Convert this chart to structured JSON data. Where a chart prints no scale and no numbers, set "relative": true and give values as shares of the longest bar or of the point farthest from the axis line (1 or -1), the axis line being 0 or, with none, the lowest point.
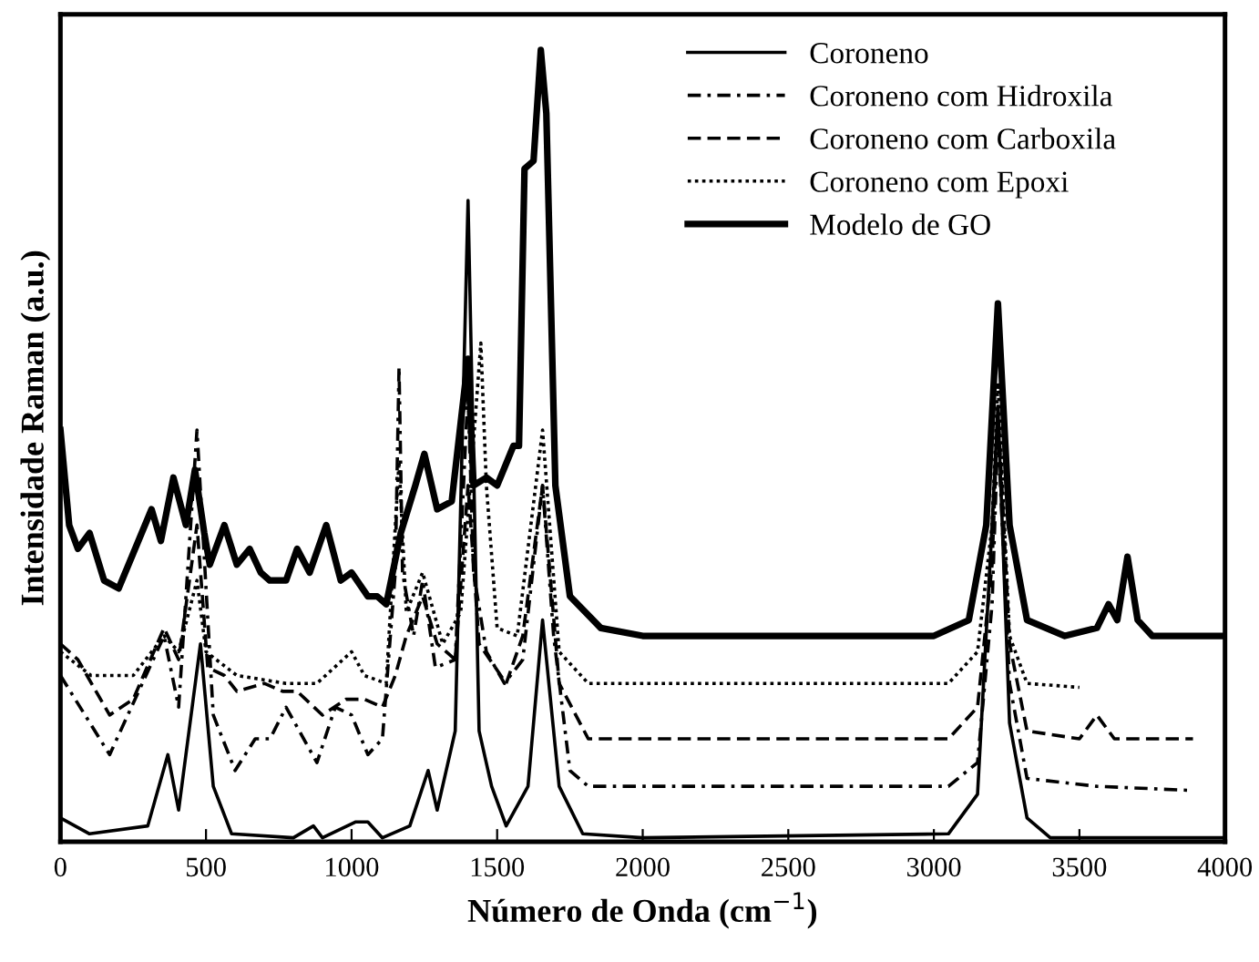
{
  "chart_data": {
    "type": "line",
    "relative": true,
    "xlabel": "Número de Onda (cm$^{−1}$)",
    "ylabel": "Intensidade Raman (a.u.)",
    "xlim": [
      0,
      4000
    ],
    "xticks": [
      0,
      500,
      1000,
      1500,
      2000,
      2500,
      3000,
      3500,
      4000
    ],
    "grid": false,
    "legend": "top right",
    "marker": "none",
    "series": [
      {
        "name": "Coroneno",
        "color": "#000000",
        "line_style": "solid",
        "x": [
          0,
          100,
          300,
          369,
          406,
          481,
          525,
          588,
          800,
          869,
          900,
          1013,
          1056,
          1106,
          1200,
          1263,
          1294,
          1356,
          1400,
          1438,
          1481,
          1531,
          1606,
          1656,
          1713,
          1794,
          2000,
          3050,
          3150,
          3200,
          3220,
          3260,
          3320,
          3400,
          4000
        ],
        "values": [
          0.03,
          0.01,
          0.02,
          0.11,
          0.04,
          0.25,
          0.07,
          0.01,
          0.005,
          0.02,
          0.005,
          0.025,
          0.025,
          0.005,
          0.02,
          0.09,
          0.04,
          0.14,
          0.81,
          0.14,
          0.07,
          0.02,
          0.07,
          0.28,
          0.07,
          0.01,
          0.005,
          0.01,
          0.06,
          0.4,
          0.55,
          0.15,
          0.03,
          0.005,
          0.005
        ]
      },
      {
        "name": "Coroneno com Hidroxila",
        "color": "#000000",
        "line_style": "dashdot",
        "x": [
          0,
          169,
          356,
          406,
          469,
          525,
          600,
          669,
          720,
          775,
          881,
          944,
          1000,
          1056,
          1106,
          1150,
          1163,
          1175,
          1213,
          1244,
          1288,
          1356,
          1400,
          1419,
          1463,
          1525,
          1588,
          1656,
          1694,
          1750,
          1813,
          3050,
          3150,
          3200,
          3220,
          3260,
          3320,
          3560,
          3875
        ],
        "values": [
          0.21,
          0.11,
          0.26,
          0.17,
          0.52,
          0.16,
          0.09,
          0.13,
          0.13,
          0.17,
          0.1,
          0.17,
          0.16,
          0.11,
          0.13,
          0.34,
          0.6,
          0.34,
          0.26,
          0.33,
          0.22,
          0.23,
          0.57,
          0.34,
          0.24,
          0.2,
          0.23,
          0.45,
          0.26,
          0.09,
          0.07,
          0.07,
          0.1,
          0.3,
          0.52,
          0.2,
          0.08,
          0.07,
          0.065
        ]
      },
      {
        "name": "Coroneno com Carboxila",
        "color": "#000000",
        "line_style": "dashed",
        "x": [
          0,
          60,
          169,
          250,
          356,
          406,
          469,
          506,
          563,
          606,
          700,
          763,
          813,
          900,
          981,
          1044,
          1106,
          1150,
          1188,
          1244,
          1294,
          1356,
          1400,
          1438,
          1531,
          1588,
          1656,
          1713,
          1813,
          3050,
          3150,
          3200,
          3220,
          3260,
          3320,
          3500,
          3560,
          3620,
          3890
        ],
        "values": [
          0.25,
          0.23,
          0.16,
          0.18,
          0.27,
          0.23,
          0.4,
          0.22,
          0.21,
          0.19,
          0.2,
          0.19,
          0.19,
          0.16,
          0.18,
          0.18,
          0.17,
          0.21,
          0.26,
          0.31,
          0.25,
          0.23,
          0.45,
          0.25,
          0.2,
          0.26,
          0.45,
          0.2,
          0.13,
          0.13,
          0.17,
          0.35,
          0.55,
          0.25,
          0.14,
          0.13,
          0.16,
          0.13,
          0.13
        ]
      },
      {
        "name": "Coroneno com Epoxi",
        "color": "#000000",
        "line_style": "dotted",
        "x": [
          0,
          105,
          250,
          356,
          406,
          469,
          500,
          606,
          775,
          881,
          1000,
          1044,
          1119,
          1163,
          1188,
          1244,
          1313,
          1375,
          1444,
          1463,
          1500,
          1569,
          1656,
          1713,
          1813,
          3050,
          3150,
          3200,
          3220,
          3260,
          3320,
          3500
        ],
        "values": [
          0.24,
          0.21,
          0.21,
          0.26,
          0.24,
          0.33,
          0.24,
          0.21,
          0.2,
          0.2,
          0.24,
          0.21,
          0.2,
          0.48,
          0.29,
          0.34,
          0.25,
          0.29,
          0.63,
          0.45,
          0.27,
          0.26,
          0.52,
          0.24,
          0.2,
          0.2,
          0.24,
          0.4,
          0.58,
          0.26,
          0.2,
          0.195
        ]
      },
      {
        "name": "Modelo de GO",
        "color": "#000000",
        "line_style": "solid",
        "x": [
          0,
          30,
          60,
          100,
          150,
          200,
          313,
          345,
          388,
          431,
          462,
          494,
          513,
          563,
          606,
          650,
          688,
          719,
          775,
          813,
          856,
          913,
          963,
          1000,
          1056,
          1088,
          1119,
          1169,
          1219,
          1250,
          1294,
          1344,
          1375,
          1400,
          1419,
          1463,
          1500,
          1556,
          1575,
          1594,
          1625,
          1650,
          1669,
          1700,
          1750,
          1856,
          2000,
          3000,
          3120,
          3180,
          3220,
          3260,
          3320,
          3450,
          3560,
          3600,
          3630,
          3665,
          3700,
          3750,
          4000
        ],
        "values": [
          0.52,
          0.4,
          0.37,
          0.39,
          0.33,
          0.32,
          0.42,
          0.38,
          0.46,
          0.4,
          0.47,
          0.39,
          0.35,
          0.4,
          0.35,
          0.37,
          0.34,
          0.33,
          0.33,
          0.37,
          0.34,
          0.4,
          0.33,
          0.34,
          0.31,
          0.31,
          0.3,
          0.39,
          0.45,
          0.49,
          0.42,
          0.43,
          0.53,
          0.61,
          0.45,
          0.46,
          0.45,
          0.5,
          0.5,
          0.85,
          0.86,
          1.0,
          0.92,
          0.45,
          0.31,
          0.27,
          0.26,
          0.26,
          0.28,
          0.4,
          0.68,
          0.4,
          0.28,
          0.26,
          0.27,
          0.3,
          0.28,
          0.36,
          0.28,
          0.26,
          0.26
        ]
      }
    ]
  }
}
